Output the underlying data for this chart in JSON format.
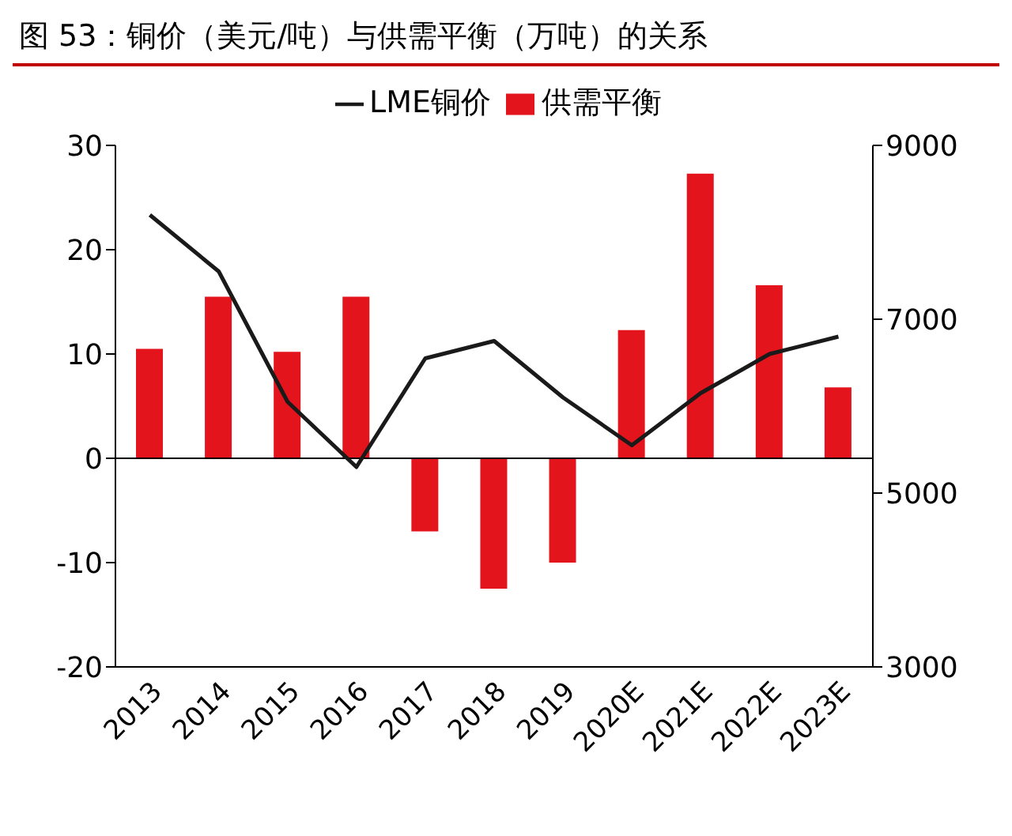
{
  "chart_data": {
    "type": "bar",
    "title": "图 53：铜价（美元/吨）与供需平衡（万吨）的关系",
    "categories": [
      "2013",
      "2014",
      "2015",
      "2016",
      "2017",
      "2018",
      "2019",
      "2020E",
      "2021E",
      "2022E",
      "2023E"
    ],
    "series": [
      {
        "name": "供需平衡",
        "color": "#e3141b",
        "values": [
          10.5,
          15.5,
          10.2,
          15.5,
          -7,
          -12.5,
          -10,
          12.3,
          27.3,
          16.6,
          6.8
        ]
      },
      {
        "name": "LME铜价",
        "type": "line",
        "axis": "y2",
        "color": "#1a1a1a",
        "values": [
          8200,
          7550,
          6050,
          5300,
          6550,
          6750,
          6100,
          5550,
          6150,
          6600,
          6800
        ]
      }
    ],
    "ylim": [
      -20,
      30
    ],
    "yticks": [
      -20,
      -10,
      0,
      10,
      20,
      30
    ],
    "y2lim": [
      3000,
      9000
    ],
    "y2ticks": [
      3000,
      5000,
      7000,
      9000
    ],
    "legend": "top",
    "marker": "none",
    "line_style": "solid"
  }
}
